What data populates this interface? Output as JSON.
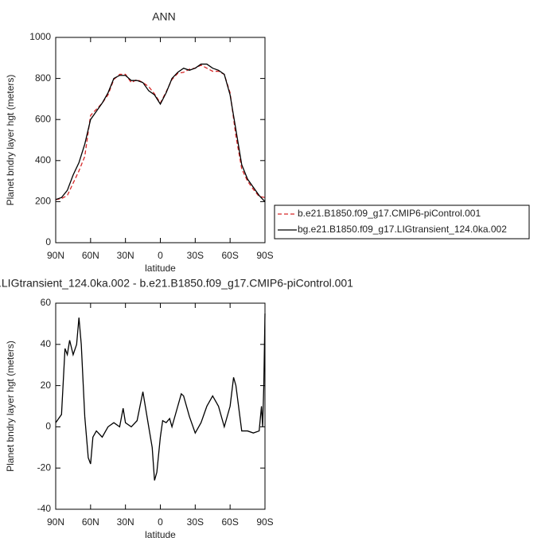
{
  "chart_data": [
    {
      "type": "line",
      "title": "ANN",
      "xlabel": "latitude",
      "ylabel": "Planet bndry layer hgt (meters)",
      "x": [
        90,
        85,
        80,
        75,
        70,
        65,
        60,
        55,
        50,
        45,
        40,
        35,
        30,
        25,
        20,
        15,
        10,
        5,
        0,
        -5,
        -10,
        -15,
        -20,
        -25,
        -30,
        -35,
        -40,
        -45,
        -50,
        -55,
        -60,
        -65,
        -70,
        -75,
        -80,
        -85,
        -90
      ],
      "series": [
        {
          "name": "b.e21.B1850.f09_g17.CMIP6-piControl.001",
          "color": "#d62728",
          "linestyle": "dashed",
          "values": [
            210,
            215,
            230,
            290,
            350,
            420,
            620,
            650,
            680,
            720,
            795,
            820,
            820,
            780,
            795,
            780,
            760,
            725,
            680,
            735,
            795,
            825,
            830,
            845,
            850,
            865,
            850,
            835,
            835,
            820,
            730,
            520,
            360,
            300,
            260,
            225,
            220
          ]
        },
        {
          "name": "bg.e21.B1850.f09_g17.LIGtransient_124.0ka.002",
          "color": "#000000",
          "linestyle": "solid",
          "values": [
            210,
            220,
            255,
            330,
            390,
            480,
            600,
            640,
            680,
            730,
            800,
            815,
            815,
            790,
            790,
            780,
            740,
            720,
            675,
            730,
            800,
            830,
            850,
            840,
            850,
            870,
            870,
            850,
            840,
            820,
            720,
            550,
            380,
            310,
            270,
            230,
            200
          ]
        }
      ],
      "xlim": [
        90,
        -90
      ],
      "xticks": [
        {
          "value": 90,
          "label": "90N"
        },
        {
          "value": 60,
          "label": "60N"
        },
        {
          "value": 30,
          "label": "30N"
        },
        0,
        {
          "value": -30,
          "label": "30S"
        },
        {
          "value": -60,
          "label": "60S"
        },
        {
          "value": -90,
          "label": "90S"
        }
      ],
      "ylim": [
        0,
        1000
      ],
      "yticks": [
        0,
        200,
        400,
        600,
        800,
        1000
      ],
      "grid": false,
      "legend": "outside-right"
    },
    {
      "type": "line",
      "title": ".LIGtransient_124.0ka.002 - b.e21.B1850.f09_g17.CMIP6-piControl.001",
      "xlabel": "latitude",
      "ylabel": "Planet bndry layer hgt (meters)",
      "x": [
        90,
        85,
        82,
        80,
        78,
        75,
        72,
        70,
        68,
        65,
        62,
        60,
        58,
        55,
        50,
        45,
        40,
        35,
        32,
        30,
        25,
        20,
        15,
        10,
        7,
        5,
        3,
        0,
        -2,
        -5,
        -8,
        -10,
        -15,
        -18,
        -20,
        -25,
        -30,
        -35,
        -40,
        -45,
        -50,
        -55,
        -60,
        -63,
        -65,
        -70,
        -75,
        -80,
        -85,
        -87,
        -88,
        -89,
        -90
      ],
      "values": [
        2,
        6,
        38,
        35,
        42,
        35,
        40,
        53,
        40,
        5,
        -15,
        -18,
        -5,
        -2,
        -5,
        0,
        2,
        0,
        9,
        2,
        0,
        3,
        17,
        0,
        -10,
        -26,
        -22,
        -5,
        3,
        2,
        4,
        0,
        10,
        16,
        15,
        5,
        -3,
        2,
        10,
        15,
        10,
        0,
        10,
        24,
        20,
        -2,
        -2,
        -3,
        -2,
        10,
        0,
        20,
        55
      ],
      "color": "#000000",
      "xlim": [
        90,
        -90
      ],
      "xticks": [
        {
          "value": 90,
          "label": "90N"
        },
        {
          "value": 60,
          "label": "60N"
        },
        {
          "value": 30,
          "label": "30N"
        },
        0,
        {
          "value": -30,
          "label": "30S"
        },
        {
          "value": -60,
          "label": "60S"
        },
        {
          "value": -90,
          "label": "90S"
        }
      ],
      "ylim": [
        -40,
        60
      ],
      "yticks": [
        -40,
        -20,
        0,
        20,
        40,
        60
      ],
      "grid": false
    }
  ]
}
